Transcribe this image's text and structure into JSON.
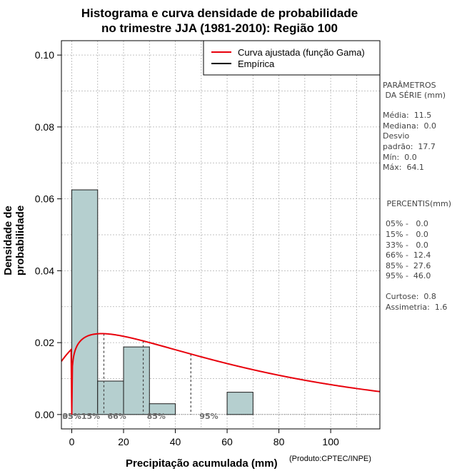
{
  "title_line1": "Histograma e curva densidade de probabilidade",
  "title_line2": "no trimestre JJA (1981-2010): Região 100",
  "chart_data": {
    "type": "histogram",
    "xlabel": "Precipitação acumulada (mm)",
    "ylabel": "Densidade de probabilidade",
    "xlim": [
      -4,
      119
    ],
    "ylim": [
      -0.004,
      0.104
    ],
    "x_ticks": [
      0,
      20,
      40,
      60,
      80,
      100
    ],
    "y_ticks": [
      0.0,
      0.02,
      0.04,
      0.06,
      0.08,
      0.1
    ],
    "x_tick_labels": [
      "0",
      "20",
      "40",
      "60",
      "80",
      "100"
    ],
    "y_tick_labels": [
      "0.00",
      "0.02",
      "0.04",
      "0.06",
      "0.08",
      "0.10"
    ],
    "grid": true,
    "bins": [
      {
        "x0": 0,
        "x1": 10,
        "density": 0.0625
      },
      {
        "x0": 10,
        "x1": 20,
        "density": 0.0093
      },
      {
        "x0": 20,
        "x1": 30,
        "density": 0.0188
      },
      {
        "x0": 30,
        "x1": 40,
        "density": 0.003
      },
      {
        "x0": 40,
        "x1": 50,
        "density": 0.0
      },
      {
        "x0": 50,
        "x1": 60,
        "density": 0.0
      },
      {
        "x0": 60,
        "x1": 70,
        "density": 0.0062
      }
    ],
    "fitted_curve": {
      "name": "Curva ajustada (função Gama)",
      "distribution": "gamma",
      "mode_x": 11.5,
      "mode_y": 0.0225,
      "color": "#e8000b"
    },
    "percentile_markers": [
      {
        "label": "05%",
        "x": 0.0
      },
      {
        "label": "15%",
        "x": 0.0
      },
      {
        "label": "33%",
        "x": 0.0
      },
      {
        "label": "66%",
        "x": 12.4
      },
      {
        "label": "85%",
        "x": 27.6
      },
      {
        "label": "95%",
        "x": 46.0
      }
    ],
    "legend": {
      "position": "top-right",
      "entries": [
        {
          "label": "Curva ajustada (função Gama)",
          "color": "#e8000b"
        },
        {
          "label": "Empírica",
          "color": "#000000"
        }
      ]
    },
    "colors": {
      "bar_fill": "#b5cfcf",
      "bar_stroke": "#1a1a1a",
      "grid": "#b0b0b0",
      "marker_text": "#707070"
    }
  },
  "credit": "(Produto:CPTEC/INPE)",
  "stats": {
    "header1": "PARÂMETROS",
    "header2": " DA SÉRIE (mm)",
    "media": "Média:  11.5",
    "mediana": "Mediana:  0.0",
    "desvio1": "Desvio",
    "desvio2": "padrão:  17.7",
    "min": "Mín:  0.0",
    "max": "Máx:  64.1"
  },
  "percentis": {
    "header": " PERCENTIS(mm)",
    "p05": "05% -   0.0",
    "p15": "15% -   0.0",
    "p33": "33% -   0.0",
    "p66": "66% -  12.4",
    "p85": "85% -  27.6",
    "p95": "95% -  46.0",
    "curtose": "Curtose:  0.8",
    "assimetria": "Assimetria:  1.6"
  }
}
